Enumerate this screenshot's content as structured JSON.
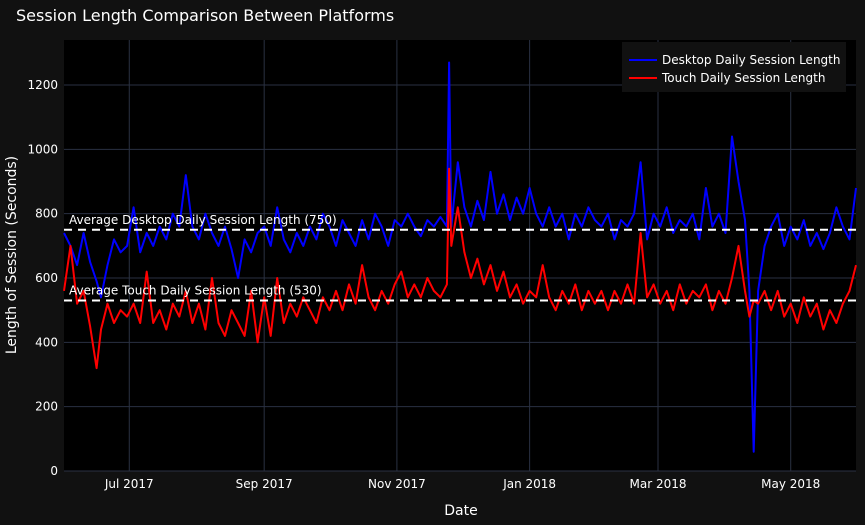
{
  "chart_data": {
    "type": "line",
    "title": "Session Length Comparison Between Platforms",
    "xlabel": "Date",
    "ylabel": "Length of Session (Seconds)",
    "x_range": [
      "2017-06-01",
      "2018-05-31"
    ],
    "ylim": [
      0,
      1340
    ],
    "x_ticks": [
      {
        "date": "2017-07-01",
        "label": "Jul 2017"
      },
      {
        "date": "2017-09-01",
        "label": "Sep 2017"
      },
      {
        "date": "2017-11-01",
        "label": "Nov 2017"
      },
      {
        "date": "2018-01-01",
        "label": "Jan 2018"
      },
      {
        "date": "2018-03-01",
        "label": "Mar 2018"
      },
      {
        "date": "2018-05-01",
        "label": "May 2018"
      }
    ],
    "y_ticks": [
      0,
      200,
      400,
      600,
      800,
      1000,
      1200
    ],
    "grid": true,
    "legend_position": "top-right",
    "series": [
      {
        "name": "Desktop Daily Session Length",
        "color": "#0000ff",
        "points": [
          [
            "2017-06-01",
            740
          ],
          [
            "2017-06-04",
            700
          ],
          [
            "2017-06-07",
            640
          ],
          [
            "2017-06-10",
            740
          ],
          [
            "2017-06-13",
            650
          ],
          [
            "2017-06-16",
            590
          ],
          [
            "2017-06-18",
            540
          ],
          [
            "2017-06-21",
            640
          ],
          [
            "2017-06-24",
            720
          ],
          [
            "2017-06-27",
            680
          ],
          [
            "2017-06-30",
            700
          ],
          [
            "2017-07-03",
            820
          ],
          [
            "2017-07-06",
            680
          ],
          [
            "2017-07-09",
            740
          ],
          [
            "2017-07-12",
            700
          ],
          [
            "2017-07-15",
            760
          ],
          [
            "2017-07-18",
            720
          ],
          [
            "2017-07-21",
            800
          ],
          [
            "2017-07-24",
            760
          ],
          [
            "2017-07-27",
            920
          ],
          [
            "2017-07-30",
            760
          ],
          [
            "2017-08-02",
            720
          ],
          [
            "2017-08-05",
            800
          ],
          [
            "2017-08-08",
            740
          ],
          [
            "2017-08-11",
            700
          ],
          [
            "2017-08-14",
            760
          ],
          [
            "2017-08-17",
            690
          ],
          [
            "2017-08-20",
            600
          ],
          [
            "2017-08-23",
            720
          ],
          [
            "2017-08-26",
            680
          ],
          [
            "2017-08-29",
            740
          ],
          [
            "2017-09-01",
            760
          ],
          [
            "2017-09-04",
            700
          ],
          [
            "2017-09-07",
            820
          ],
          [
            "2017-09-10",
            720
          ],
          [
            "2017-09-13",
            680
          ],
          [
            "2017-09-16",
            740
          ],
          [
            "2017-09-19",
            700
          ],
          [
            "2017-09-22",
            760
          ],
          [
            "2017-09-25",
            720
          ],
          [
            "2017-09-28",
            800
          ],
          [
            "2017-10-01",
            760
          ],
          [
            "2017-10-04",
            700
          ],
          [
            "2017-10-07",
            780
          ],
          [
            "2017-10-10",
            740
          ],
          [
            "2017-10-13",
            700
          ],
          [
            "2017-10-16",
            780
          ],
          [
            "2017-10-19",
            720
          ],
          [
            "2017-10-22",
            800
          ],
          [
            "2017-10-25",
            760
          ],
          [
            "2017-10-28",
            700
          ],
          [
            "2017-10-31",
            780
          ],
          [
            "2017-11-03",
            760
          ],
          [
            "2017-11-06",
            800
          ],
          [
            "2017-11-09",
            760
          ],
          [
            "2017-11-12",
            730
          ],
          [
            "2017-11-15",
            780
          ],
          [
            "2017-11-18",
            760
          ],
          [
            "2017-11-21",
            790
          ],
          [
            "2017-11-24",
            760
          ],
          [
            "2017-11-25",
            1270
          ],
          [
            "2017-11-26",
            760
          ],
          [
            "2017-11-29",
            960
          ],
          [
            "2017-12-02",
            820
          ],
          [
            "2017-12-05",
            760
          ],
          [
            "2017-12-08",
            840
          ],
          [
            "2017-12-11",
            780
          ],
          [
            "2017-12-14",
            930
          ],
          [
            "2017-12-17",
            800
          ],
          [
            "2017-12-20",
            860
          ],
          [
            "2017-12-23",
            780
          ],
          [
            "2017-12-26",
            850
          ],
          [
            "2017-12-29",
            800
          ],
          [
            "2018-01-01",
            880
          ],
          [
            "2018-01-04",
            800
          ],
          [
            "2018-01-07",
            760
          ],
          [
            "2018-01-10",
            820
          ],
          [
            "2018-01-13",
            760
          ],
          [
            "2018-01-16",
            800
          ],
          [
            "2018-01-19",
            720
          ],
          [
            "2018-01-22",
            800
          ],
          [
            "2018-01-25",
            760
          ],
          [
            "2018-01-28",
            820
          ],
          [
            "2018-01-31",
            780
          ],
          [
            "2018-02-03",
            760
          ],
          [
            "2018-02-06",
            800
          ],
          [
            "2018-02-09",
            720
          ],
          [
            "2018-02-12",
            780
          ],
          [
            "2018-02-15",
            760
          ],
          [
            "2018-02-18",
            800
          ],
          [
            "2018-02-21",
            960
          ],
          [
            "2018-02-24",
            720
          ],
          [
            "2018-02-27",
            800
          ],
          [
            "2018-03-02",
            760
          ],
          [
            "2018-03-05",
            820
          ],
          [
            "2018-03-08",
            740
          ],
          [
            "2018-03-11",
            780
          ],
          [
            "2018-03-14",
            760
          ],
          [
            "2018-03-17",
            800
          ],
          [
            "2018-03-20",
            720
          ],
          [
            "2018-03-23",
            880
          ],
          [
            "2018-03-26",
            760
          ],
          [
            "2018-03-29",
            800
          ],
          [
            "2018-04-01",
            740
          ],
          [
            "2018-04-04",
            1040
          ],
          [
            "2018-04-07",
            900
          ],
          [
            "2018-04-10",
            780
          ],
          [
            "2018-04-12",
            560
          ],
          [
            "2018-04-14",
            60
          ],
          [
            "2018-04-16",
            560
          ],
          [
            "2018-04-19",
            700
          ],
          [
            "2018-04-22",
            760
          ],
          [
            "2018-04-25",
            800
          ],
          [
            "2018-04-28",
            700
          ],
          [
            "2018-05-01",
            760
          ],
          [
            "2018-05-04",
            720
          ],
          [
            "2018-05-07",
            780
          ],
          [
            "2018-05-10",
            700
          ],
          [
            "2018-05-13",
            740
          ],
          [
            "2018-05-16",
            690
          ],
          [
            "2018-05-19",
            740
          ],
          [
            "2018-05-22",
            820
          ],
          [
            "2018-05-25",
            760
          ],
          [
            "2018-05-28",
            720
          ],
          [
            "2018-05-31",
            880
          ]
        ]
      },
      {
        "name": "Touch Daily Session Length",
        "color": "#ff0000",
        "points": [
          [
            "2017-06-01",
            560
          ],
          [
            "2017-06-04",
            700
          ],
          [
            "2017-06-07",
            520
          ],
          [
            "2017-06-10",
            560
          ],
          [
            "2017-06-13",
            450
          ],
          [
            "2017-06-16",
            320
          ],
          [
            "2017-06-18",
            440
          ],
          [
            "2017-06-21",
            520
          ],
          [
            "2017-06-24",
            460
          ],
          [
            "2017-06-27",
            500
          ],
          [
            "2017-06-30",
            480
          ],
          [
            "2017-07-03",
            520
          ],
          [
            "2017-07-06",
            460
          ],
          [
            "2017-07-09",
            620
          ],
          [
            "2017-07-12",
            460
          ],
          [
            "2017-07-15",
            500
          ],
          [
            "2017-07-18",
            440
          ],
          [
            "2017-07-21",
            520
          ],
          [
            "2017-07-24",
            480
          ],
          [
            "2017-07-27",
            560
          ],
          [
            "2017-07-30",
            460
          ],
          [
            "2017-08-02",
            520
          ],
          [
            "2017-08-05",
            440
          ],
          [
            "2017-08-08",
            600
          ],
          [
            "2017-08-11",
            460
          ],
          [
            "2017-08-14",
            420
          ],
          [
            "2017-08-17",
            500
          ],
          [
            "2017-08-20",
            460
          ],
          [
            "2017-08-23",
            420
          ],
          [
            "2017-08-26",
            560
          ],
          [
            "2017-08-29",
            400
          ],
          [
            "2017-09-01",
            540
          ],
          [
            "2017-09-04",
            420
          ],
          [
            "2017-09-07",
            600
          ],
          [
            "2017-09-10",
            460
          ],
          [
            "2017-09-13",
            520
          ],
          [
            "2017-09-16",
            480
          ],
          [
            "2017-09-19",
            540
          ],
          [
            "2017-09-22",
            500
          ],
          [
            "2017-09-25",
            460
          ],
          [
            "2017-09-28",
            540
          ],
          [
            "2017-10-01",
            500
          ],
          [
            "2017-10-04",
            560
          ],
          [
            "2017-10-07",
            500
          ],
          [
            "2017-10-10",
            580
          ],
          [
            "2017-10-13",
            520
          ],
          [
            "2017-10-16",
            640
          ],
          [
            "2017-10-19",
            540
          ],
          [
            "2017-10-22",
            500
          ],
          [
            "2017-10-25",
            560
          ],
          [
            "2017-10-28",
            520
          ],
          [
            "2017-10-31",
            580
          ],
          [
            "2017-11-03",
            620
          ],
          [
            "2017-11-06",
            540
          ],
          [
            "2017-11-09",
            580
          ],
          [
            "2017-11-12",
            540
          ],
          [
            "2017-11-15",
            600
          ],
          [
            "2017-11-18",
            560
          ],
          [
            "2017-11-21",
            540
          ],
          [
            "2017-11-24",
            580
          ],
          [
            "2017-11-25",
            940
          ],
          [
            "2017-11-26",
            700
          ],
          [
            "2017-11-29",
            820
          ],
          [
            "2017-12-02",
            680
          ],
          [
            "2017-12-05",
            600
          ],
          [
            "2017-12-08",
            660
          ],
          [
            "2017-12-11",
            580
          ],
          [
            "2017-12-14",
            640
          ],
          [
            "2017-12-17",
            560
          ],
          [
            "2017-12-20",
            620
          ],
          [
            "2017-12-23",
            540
          ],
          [
            "2017-12-26",
            580
          ],
          [
            "2017-12-29",
            520
          ],
          [
            "2018-01-01",
            560
          ],
          [
            "2018-01-04",
            540
          ],
          [
            "2018-01-07",
            640
          ],
          [
            "2018-01-10",
            540
          ],
          [
            "2018-01-13",
            500
          ],
          [
            "2018-01-16",
            560
          ],
          [
            "2018-01-19",
            520
          ],
          [
            "2018-01-22",
            580
          ],
          [
            "2018-01-25",
            500
          ],
          [
            "2018-01-28",
            560
          ],
          [
            "2018-01-31",
            520
          ],
          [
            "2018-02-03",
            560
          ],
          [
            "2018-02-06",
            500
          ],
          [
            "2018-02-09",
            560
          ],
          [
            "2018-02-12",
            520
          ],
          [
            "2018-02-15",
            580
          ],
          [
            "2018-02-18",
            520
          ],
          [
            "2018-02-21",
            740
          ],
          [
            "2018-02-24",
            540
          ],
          [
            "2018-02-27",
            580
          ],
          [
            "2018-03-02",
            520
          ],
          [
            "2018-03-05",
            560
          ],
          [
            "2018-03-08",
            500
          ],
          [
            "2018-03-11",
            580
          ],
          [
            "2018-03-14",
            520
          ],
          [
            "2018-03-17",
            560
          ],
          [
            "2018-03-20",
            540
          ],
          [
            "2018-03-23",
            580
          ],
          [
            "2018-03-26",
            500
          ],
          [
            "2018-03-29",
            560
          ],
          [
            "2018-04-01",
            520
          ],
          [
            "2018-04-04",
            600
          ],
          [
            "2018-04-07",
            700
          ],
          [
            "2018-04-10",
            560
          ],
          [
            "2018-04-12",
            480
          ],
          [
            "2018-04-14",
            530
          ],
          [
            "2018-04-16",
            520
          ],
          [
            "2018-04-19",
            560
          ],
          [
            "2018-04-22",
            500
          ],
          [
            "2018-04-25",
            560
          ],
          [
            "2018-04-28",
            480
          ],
          [
            "2018-05-01",
            520
          ],
          [
            "2018-05-04",
            460
          ],
          [
            "2018-05-07",
            540
          ],
          [
            "2018-05-10",
            480
          ],
          [
            "2018-05-13",
            520
          ],
          [
            "2018-05-16",
            440
          ],
          [
            "2018-05-19",
            500
          ],
          [
            "2018-05-22",
            460
          ],
          [
            "2018-05-25",
            520
          ],
          [
            "2018-05-28",
            560
          ],
          [
            "2018-05-31",
            640
          ]
        ]
      }
    ],
    "reference_lines": [
      {
        "label": "Average Desktop Daily Session Length (750)",
        "value": 750,
        "style": "dashed",
        "color": "#ffffff"
      },
      {
        "label": "Average Touch Daily Session Length (530)",
        "value": 530,
        "style": "dashed",
        "color": "#ffffff"
      }
    ]
  },
  "colors": {
    "page_bg": "#111111",
    "plot_bg": "#000000",
    "grid": "#2a3142",
    "text": "#ffffff",
    "legend_bg": "#111111"
  }
}
